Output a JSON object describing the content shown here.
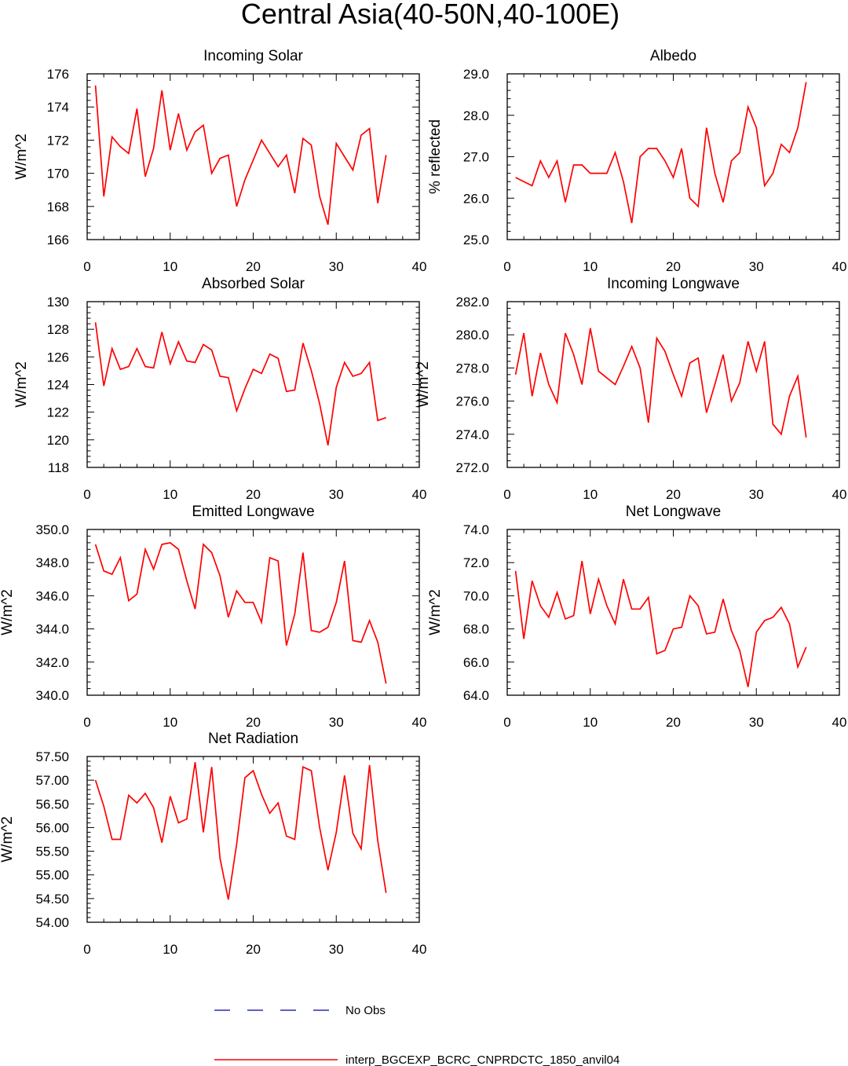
{
  "title": "Central Asia(40-50N,40-100E)",
  "legend": {
    "placement": "bottom-center",
    "entries": [
      {
        "label": "No Obs",
        "color": "#0000aa",
        "style": "dashed"
      },
      {
        "label": "interp_BGCEXP_BCRC_CNPRDCTC_1850_anvil04",
        "color": "#ff0000",
        "style": "solid"
      }
    ]
  },
  "chart_data": [
    {
      "type": "line",
      "title": "Incoming Solar",
      "xlabel": "",
      "ylabel": "W/m^2",
      "xlim": [
        0,
        40
      ],
      "ylim": [
        166,
        176
      ],
      "xticks": [
        "0",
        "10",
        "20",
        "30",
        "40"
      ],
      "yticks": [
        "166",
        "168",
        "170",
        "172",
        "174",
        "176"
      ],
      "grid": false,
      "series": [
        {
          "color": "#ff0000",
          "x": [
            1,
            2,
            3,
            4,
            5,
            6,
            7,
            8,
            9,
            10,
            11,
            12,
            13,
            14,
            15,
            16,
            17,
            18,
            19,
            20,
            21,
            22,
            23,
            24,
            25,
            26,
            27,
            28,
            29,
            30,
            31,
            32,
            33,
            34,
            35,
            36
          ],
          "values": [
            175.3,
            168.6,
            172.2,
            171.6,
            171.2,
            173.9,
            169.8,
            171.5,
            175.0,
            171.4,
            173.6,
            171.4,
            172.5,
            172.9,
            170.0,
            170.9,
            171.1,
            168.0,
            169.6,
            170.8,
            172.0,
            171.2,
            170.4,
            171.1,
            168.8,
            172.1,
            171.7,
            168.6,
            166.9,
            171.8,
            171.0,
            170.2,
            172.3,
            172.7,
            168.2,
            171.1
          ]
        }
      ]
    },
    {
      "type": "line",
      "title": "Albedo",
      "xlabel": "",
      "ylabel": "% reflected",
      "xlim": [
        0,
        40
      ],
      "ylim": [
        25.0,
        29.0
      ],
      "xticks": [
        "0",
        "10",
        "20",
        "30",
        "40"
      ],
      "yticks": [
        "25.0",
        "26.0",
        "27.0",
        "28.0",
        "29.0"
      ],
      "grid": false,
      "series": [
        {
          "color": "#ff0000",
          "x": [
            1,
            2,
            3,
            4,
            5,
            6,
            7,
            8,
            9,
            10,
            11,
            12,
            13,
            14,
            15,
            16,
            17,
            18,
            19,
            20,
            21,
            22,
            23,
            24,
            25,
            26,
            27,
            28,
            29,
            30,
            31,
            32,
            33,
            34,
            35,
            36
          ],
          "values": [
            26.5,
            26.4,
            26.3,
            26.9,
            26.5,
            26.9,
            25.9,
            26.8,
            26.8,
            26.6,
            26.6,
            26.6,
            27.1,
            26.4,
            25.4,
            27.0,
            27.2,
            27.2,
            26.9,
            26.5,
            27.2,
            26.0,
            25.8,
            27.7,
            26.6,
            25.9,
            26.9,
            27.1,
            28.2,
            27.7,
            26.3,
            26.6,
            27.3,
            27.1,
            27.7,
            28.8
          ]
        }
      ]
    },
    {
      "type": "line",
      "title": "Absorbed Solar",
      "xlabel": "",
      "ylabel": "W/m^2",
      "xlim": [
        0,
        40
      ],
      "ylim": [
        118,
        130
      ],
      "xticks": [
        "0",
        "10",
        "20",
        "30",
        "40"
      ],
      "yticks": [
        "118",
        "120",
        "122",
        "124",
        "126",
        "128",
        "130"
      ],
      "grid": false,
      "series": [
        {
          "color": "#ff0000",
          "x": [
            1,
            2,
            3,
            4,
            5,
            6,
            7,
            8,
            9,
            10,
            11,
            12,
            13,
            14,
            15,
            16,
            17,
            18,
            19,
            20,
            21,
            22,
            23,
            24,
            25,
            26,
            27,
            28,
            29,
            30,
            31,
            32,
            33,
            34,
            35,
            36
          ],
          "values": [
            128.5,
            123.9,
            126.6,
            125.1,
            125.3,
            126.6,
            125.3,
            125.2,
            127.8,
            125.5,
            127.1,
            125.7,
            125.6,
            126.9,
            126.5,
            124.6,
            124.5,
            122.1,
            123.7,
            125.1,
            124.8,
            126.2,
            125.9,
            123.5,
            123.6,
            127.0,
            125.0,
            122.6,
            119.6,
            123.8,
            125.6,
            124.6,
            124.8,
            125.6,
            121.4,
            121.6
          ]
        }
      ]
    },
    {
      "type": "line",
      "title": "Incoming Longwave",
      "xlabel": "",
      "ylabel": "W/m^2",
      "xlim": [
        0,
        40
      ],
      "ylim": [
        272.0,
        282.0
      ],
      "xticks": [
        "0",
        "10",
        "20",
        "30",
        "40"
      ],
      "yticks": [
        "272.0",
        "274.0",
        "276.0",
        "278.0",
        "280.0",
        "282.0"
      ],
      "grid": false,
      "series": [
        {
          "color": "#ff0000",
          "x": [
            1,
            2,
            3,
            4,
            5,
            6,
            7,
            8,
            9,
            10,
            11,
            12,
            13,
            14,
            15,
            16,
            17,
            18,
            19,
            20,
            21,
            22,
            23,
            24,
            25,
            26,
            27,
            28,
            29,
            30,
            31,
            32,
            33,
            34,
            35,
            36
          ],
          "values": [
            277.6,
            280.1,
            276.3,
            278.9,
            277.0,
            275.9,
            280.1,
            278.8,
            277.0,
            280.4,
            277.8,
            277.4,
            277.0,
            278.1,
            279.3,
            278.0,
            274.7,
            279.8,
            279.0,
            277.6,
            276.3,
            278.3,
            278.6,
            275.3,
            277.0,
            278.8,
            276.0,
            277.1,
            279.6,
            277.8,
            279.6,
            274.6,
            274.0,
            276.3,
            277.5,
            273.8
          ]
        }
      ]
    },
    {
      "type": "line",
      "title": "Emitted Longwave",
      "xlabel": "",
      "ylabel": "W/m^2",
      "xlim": [
        0,
        40
      ],
      "ylim": [
        340.0,
        350.0
      ],
      "xticks": [
        "0",
        "10",
        "20",
        "30",
        "40"
      ],
      "yticks": [
        "340.0",
        "342.0",
        "344.0",
        "346.0",
        "348.0",
        "350.0"
      ],
      "grid": false,
      "series": [
        {
          "color": "#ff0000",
          "x": [
            1,
            2,
            3,
            4,
            5,
            6,
            7,
            8,
            9,
            10,
            11,
            12,
            13,
            14,
            15,
            16,
            17,
            18,
            19,
            20,
            21,
            22,
            23,
            24,
            25,
            26,
            27,
            28,
            29,
            30,
            31,
            32,
            33,
            34,
            35,
            36
          ],
          "values": [
            349.1,
            347.5,
            347.3,
            348.3,
            345.7,
            346.1,
            348.8,
            347.6,
            349.1,
            349.2,
            348.8,
            346.9,
            345.2,
            349.1,
            348.6,
            347.2,
            344.7,
            346.3,
            345.6,
            345.6,
            344.4,
            348.3,
            348.1,
            343.0,
            344.9,
            348.6,
            343.9,
            343.8,
            344.1,
            345.6,
            348.1,
            343.3,
            343.2,
            344.5,
            343.2,
            340.7
          ]
        }
      ]
    },
    {
      "type": "line",
      "title": "Net Longwave",
      "xlabel": "",
      "ylabel": "W/m^2",
      "xlim": [
        0,
        40
      ],
      "ylim": [
        64.0,
        74.0
      ],
      "xticks": [
        "0",
        "10",
        "20",
        "30",
        "40"
      ],
      "yticks": [
        "64.0",
        "66.0",
        "68.0",
        "70.0",
        "72.0",
        "74.0"
      ],
      "grid": false,
      "series": [
        {
          "color": "#ff0000",
          "x": [
            1,
            2,
            3,
            4,
            5,
            6,
            7,
            8,
            9,
            10,
            11,
            12,
            13,
            14,
            15,
            16,
            17,
            18,
            19,
            20,
            21,
            22,
            23,
            24,
            25,
            26,
            27,
            28,
            29,
            30,
            31,
            32,
            33,
            34,
            35,
            36
          ],
          "values": [
            71.5,
            67.4,
            70.9,
            69.4,
            68.7,
            70.2,
            68.6,
            68.8,
            72.1,
            68.9,
            71.0,
            69.4,
            68.3,
            71.0,
            69.2,
            69.2,
            69.9,
            66.5,
            66.7,
            68.0,
            68.1,
            70.0,
            69.4,
            67.7,
            67.8,
            69.8,
            67.9,
            66.7,
            64.5,
            67.8,
            68.5,
            68.7,
            69.3,
            68.3,
            65.7,
            66.9
          ]
        }
      ]
    },
    {
      "type": "line",
      "title": "Net Radiation",
      "xlabel": "",
      "ylabel": "W/m^2",
      "xlim": [
        0,
        40
      ],
      "ylim": [
        54.0,
        57.5
      ],
      "xticks": [
        "0",
        "10",
        "20",
        "30",
        "40"
      ],
      "yticks": [
        "54.00",
        "54.50",
        "55.00",
        "55.50",
        "56.00",
        "56.50",
        "57.00",
        "57.50"
      ],
      "grid": false,
      "series": [
        {
          "color": "#ff0000",
          "x": [
            1,
            2,
            3,
            4,
            5,
            6,
            7,
            8,
            9,
            10,
            11,
            12,
            13,
            14,
            15,
            16,
            17,
            18,
            19,
            20,
            21,
            22,
            23,
            24,
            25,
            26,
            27,
            28,
            29,
            30,
            31,
            32,
            33,
            34,
            35,
            36
          ],
          "values": [
            57.0,
            56.45,
            55.75,
            55.75,
            56.68,
            56.52,
            56.72,
            56.42,
            55.68,
            56.66,
            56.1,
            56.18,
            57.38,
            55.9,
            57.28,
            55.35,
            54.48,
            55.65,
            57.05,
            57.2,
            56.7,
            56.3,
            56.52,
            55.82,
            55.75,
            57.28,
            57.2,
            56.0,
            55.1,
            55.9,
            57.1,
            55.88,
            55.55,
            57.32,
            55.72,
            54.62
          ]
        }
      ]
    }
  ]
}
